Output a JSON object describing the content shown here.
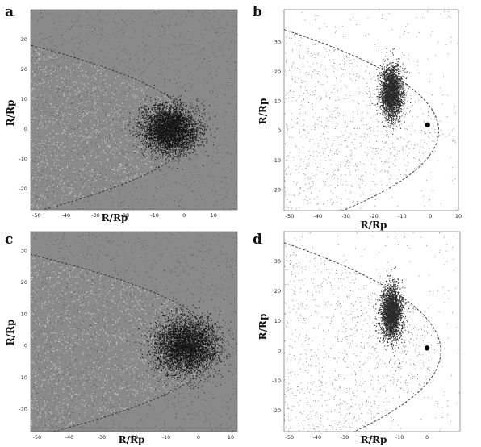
{
  "figure": {
    "panel_labels": [
      "a",
      "b",
      "c",
      "d"
    ]
  },
  "chart_data": [
    {
      "panel": "a",
      "type": "scatter",
      "background": "grey",
      "xlabel": "R/Rp",
      "ylabel": "R/Rp",
      "xlim": [
        -52,
        18
      ],
      "ylim": [
        -27,
        40
      ],
      "xticks": [
        "-50",
        "-40",
        "-30",
        "-20",
        "-10",
        "0",
        "10"
      ],
      "yticks": [
        "30",
        "20",
        "10",
        "0",
        "-10",
        "-20"
      ],
      "dense_cluster": {
        "center": [
          -5,
          0
        ],
        "radius_x": 8.5,
        "radius_y": 7
      },
      "boundary": {
        "style": "dashed",
        "vertex_x": 3,
        "vertex_y": 0,
        "half_width": 27,
        "x_at_half_width": -48
      },
      "planet_marker": false
    },
    {
      "panel": "b",
      "type": "scatter",
      "background": "white",
      "xlabel": "R/Rp",
      "ylabel": "R/Rp",
      "xlim": [
        -52,
        10
      ],
      "ylim": [
        -27,
        41
      ],
      "xticks": [
        "-50",
        "-40",
        "-30",
        "-20",
        "-10",
        "0",
        "10"
      ],
      "yticks": [
        "30",
        "20",
        "10",
        "0",
        "-10",
        "-20"
      ],
      "dense_cluster": {
        "center": [
          -14,
          13
        ],
        "radius_x": 3.5,
        "radius_y": 8
      },
      "boundary": {
        "style": "dashed",
        "vertex_x": 3,
        "vertex_y": 0,
        "half_width": 33,
        "x_at_half_width": -48
      },
      "planet_marker": {
        "x": -1,
        "y": 2
      }
    },
    {
      "panel": "c",
      "type": "scatter",
      "background": "grey",
      "xlabel": "R/Rp",
      "ylabel": "R/Rp",
      "xlim": [
        -52,
        12
      ],
      "ylim": [
        -27,
        36
      ],
      "xticks": [
        "-50",
        "-40",
        "-30",
        "-20",
        "-10",
        "0",
        "10"
      ],
      "yticks": [
        "30",
        "20",
        "10",
        "0",
        "-10",
        "-20"
      ],
      "dense_cluster": {
        "center": [
          -4,
          0
        ],
        "radius_x": 9,
        "radius_y": 8
      },
      "boundary": {
        "style": "dashed",
        "vertex_x": 6,
        "vertex_y": 0,
        "half_width": 27,
        "x_at_half_width": -45
      },
      "planet_marker": false
    },
    {
      "panel": "d",
      "type": "scatter",
      "background": "white",
      "xlabel": "R/Rp",
      "ylabel": "R/Rp",
      "xlim": [
        -52,
        12
      ],
      "ylim": [
        -27,
        40
      ],
      "xticks": [
        "-50",
        "-40",
        "-30",
        "-20",
        "-10",
        "0"
      ],
      "yticks": [
        "30",
        "20",
        "10",
        "0",
        "-10",
        "-20"
      ],
      "dense_cluster": {
        "center": [
          -13,
          13
        ],
        "radius_x": 3.5,
        "radius_y": 8
      },
      "boundary": {
        "style": "dashed",
        "vertex_x": 5,
        "vertex_y": 0,
        "half_width": 35,
        "x_at_half_width": -48
      },
      "planet_marker": {
        "x": 0,
        "y": 1
      }
    }
  ]
}
